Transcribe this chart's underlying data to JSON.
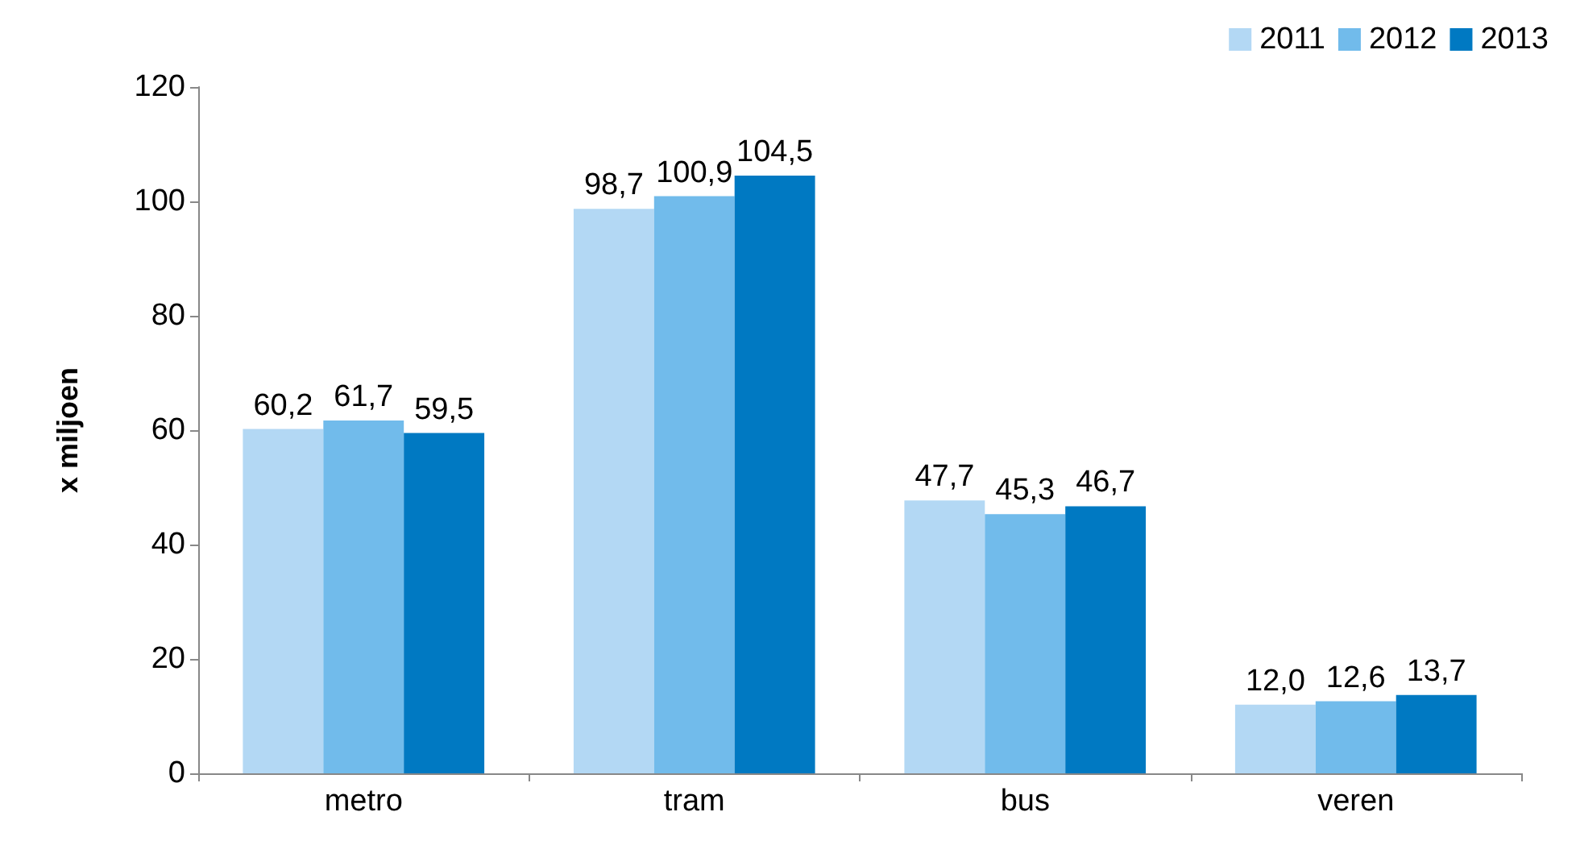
{
  "chart_data": {
    "type": "bar",
    "ylabel": "x miljoen",
    "categories": [
      "metro",
      "tram",
      "bus",
      "veren"
    ],
    "series": [
      {
        "name": "2011",
        "color": "#b3d8f4",
        "values": [
          60.2,
          98.7,
          47.7,
          12.0
        ],
        "value_labels": [
          "60,2",
          "98,7",
          "47,7",
          "12,0"
        ]
      },
      {
        "name": "2012",
        "color": "#71bbeb",
        "values": [
          61.7,
          100.9,
          45.3,
          12.6
        ],
        "value_labels": [
          "61,7",
          "100,9",
          "45,3",
          "12,6"
        ]
      },
      {
        "name": "2013",
        "color": "#0079c2",
        "values": [
          59.5,
          104.5,
          46.7,
          13.7
        ],
        "value_labels": [
          "59,5",
          "104,5",
          "46,7",
          "13,7"
        ]
      }
    ],
    "ylim": [
      0,
      120
    ],
    "yticks": [
      0,
      20,
      40,
      60,
      80,
      100,
      120
    ],
    "grid": false,
    "legend": "top right"
  }
}
